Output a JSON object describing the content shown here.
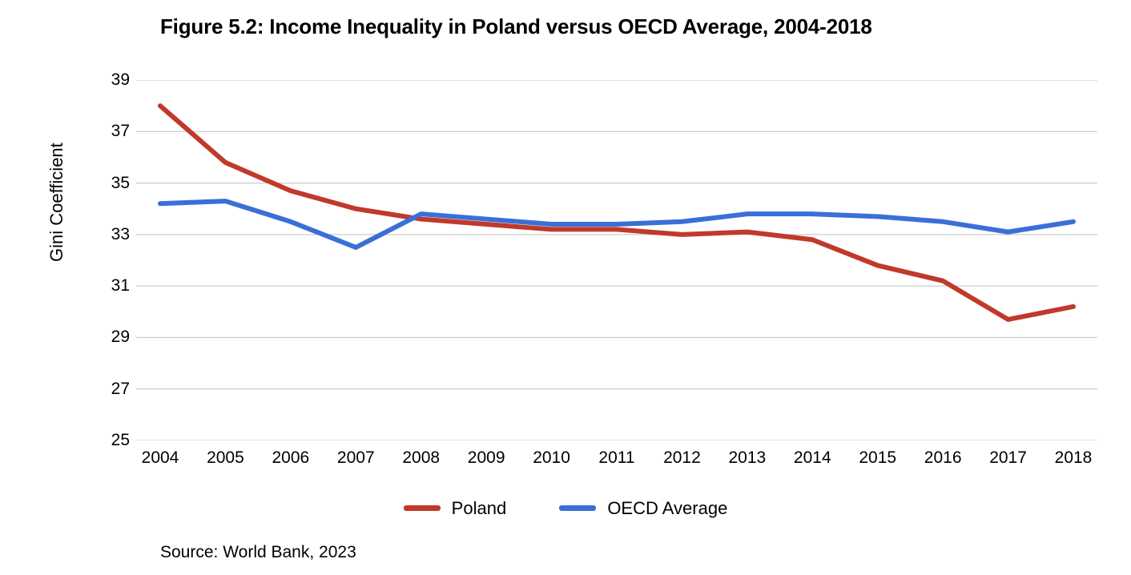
{
  "title": "Figure 5.2: Income Inequality in Poland versus OECD Average, 2004-2018",
  "ylabel": "Gini Coefficient",
  "source": "Source: World Bank, 2023",
  "chart": {
    "type": "line",
    "background_color": "#ffffff",
    "grid_color": "#bfbfbf",
    "grid_width": 1,
    "line_width": 6,
    "title_fontsize": 26,
    "title_fontweight": 700,
    "label_fontsize": 22,
    "tick_fontsize": 21,
    "font_family": "Helvetica Neue, Arial Narrow, sans-serif",
    "x": {
      "values": [
        2004,
        2005,
        2006,
        2007,
        2008,
        2009,
        2010,
        2011,
        2012,
        2013,
        2014,
        2015,
        2016,
        2017,
        2018
      ],
      "labels": [
        "2004",
        "2005",
        "2006",
        "2007",
        "2008",
        "2009",
        "2010",
        "2011",
        "2012",
        "2013",
        "2014",
        "2015",
        "2016",
        "2017",
        "2018"
      ]
    },
    "y": {
      "min": 25,
      "max": 39,
      "tick_step": 2,
      "ticks": [
        25,
        27,
        29,
        31,
        33,
        35,
        37,
        39
      ],
      "labels": [
        "25",
        "27",
        "29",
        "31",
        "33",
        "35",
        "37",
        "39"
      ]
    },
    "series": [
      {
        "name": "Poland",
        "color": "#c0392b",
        "values": [
          38.0,
          35.8,
          34.7,
          34.0,
          33.6,
          33.4,
          33.2,
          33.2,
          33.0,
          33.1,
          32.8,
          31.8,
          31.2,
          29.7,
          30.2
        ]
      },
      {
        "name": "OECD Average",
        "color": "#3a6fd8",
        "values": [
          34.2,
          34.3,
          33.5,
          32.5,
          33.8,
          33.6,
          33.4,
          33.4,
          33.5,
          33.8,
          33.8,
          33.7,
          33.5,
          33.1,
          33.5
        ]
      }
    ],
    "legend": {
      "position": "bottom",
      "items": [
        {
          "label": "Poland",
          "color": "#c0392b"
        },
        {
          "label": "OECD Average",
          "color": "#3a6fd8"
        }
      ]
    }
  }
}
